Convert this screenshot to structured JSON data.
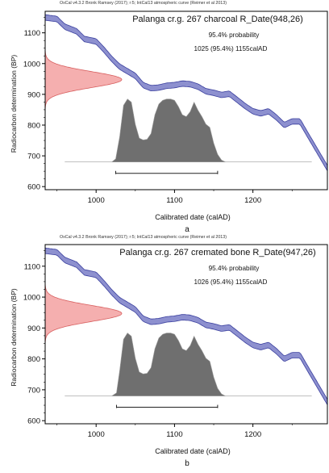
{
  "chart_data": [
    {
      "type": "area",
      "panel_label": "a",
      "credit": "OxCal v4.3.2 Bronk Ramsey (2017); r:5; IntCal13 atmospheric curve (Reimer et al 2013)",
      "title": "Palanga cr.g. 267 charcoal R_Date(948,26)",
      "probability_label": "95.4% probability",
      "range_label": "1025 (95.4%) 1155calAD",
      "xlabel": "Calibrated date (calAD)",
      "ylabel": "Radiocarbon determination (BP)",
      "xlim": [
        935,
        1295
      ],
      "ylim": [
        590,
        1170
      ],
      "xticks": [
        1000,
        1100,
        1200
      ],
      "yticks": [
        600,
        700,
        800,
        900,
        1000,
        1100
      ],
      "colors": {
        "curve_fill": "#8d90cf",
        "curve_stroke": "#3a3f9e",
        "normal": "#f4a6a6",
        "normal_stroke": "#d86060",
        "posterior": "#6f6f6f"
      },
      "calibration_curve": {
        "x": [
          935,
          950,
          960,
          975,
          985,
          1000,
          1010,
          1020,
          1030,
          1040,
          1050,
          1060,
          1070,
          1080,
          1090,
          1100,
          1110,
          1120,
          1130,
          1140,
          1150,
          1160,
          1170,
          1180,
          1190,
          1200,
          1210,
          1220,
          1230,
          1240,
          1250,
          1260,
          1270,
          1280,
          1295
        ],
        "y": [
          1150,
          1145,
          1120,
          1105,
          1080,
          1072,
          1045,
          1015,
          990,
          975,
          960,
          930,
          920,
          922,
          928,
          930,
          935,
          933,
          925,
          910,
          905,
          898,
          902,
          882,
          862,
          845,
          838,
          845,
          825,
          800,
          812,
          812,
          768,
          725,
          660
        ],
        "sigma": 9
      },
      "radiocarbon_date": {
        "mean": 948,
        "sigma": 26
      },
      "posterior": {
        "x": [
          960,
          1020,
          1025,
          1030,
          1035,
          1040,
          1045,
          1050,
          1055,
          1060,
          1065,
          1070,
          1075,
          1080,
          1085,
          1090,
          1095,
          1100,
          1105,
          1110,
          1115,
          1120,
          1125,
          1130,
          1135,
          1140,
          1145,
          1150,
          1155,
          1160,
          1165,
          1275
        ],
        "y": [
          0,
          0,
          0.05,
          0.4,
          0.9,
          1.0,
          0.95,
          0.6,
          0.38,
          0.35,
          0.36,
          0.45,
          0.75,
          0.92,
          0.98,
          1.0,
          1.0,
          0.98,
          0.88,
          0.75,
          0.72,
          0.8,
          0.95,
          0.82,
          0.72,
          0.6,
          0.55,
          0.3,
          0.12,
          0.03,
          0,
          0
        ]
      },
      "range_95": [
        1025,
        1155
      ]
    },
    {
      "type": "area",
      "panel_label": "b",
      "credit": "OxCal v4.3.2 Bronk Ramsey (2017); r:5; IntCal13 atmospheric curve (Reimer et al 2013)",
      "title": "Palanga cr.g. 267 cremated bone R_Date(947,26)",
      "probability_label": "95.4% probability",
      "range_label": "1026 (95.4%) 1155calAD",
      "xlabel": "Calibrated date (calAD)",
      "ylabel": "Radiocarbon determination (BP)",
      "xlim": [
        935,
        1295
      ],
      "ylim": [
        590,
        1170
      ],
      "xticks": [
        1000,
        1100,
        1200
      ],
      "yticks": [
        600,
        700,
        800,
        900,
        1000,
        1100
      ],
      "colors": {
        "curve_fill": "#8d90cf",
        "curve_stroke": "#3a3f9e",
        "normal": "#f4a6a6",
        "normal_stroke": "#d86060",
        "posterior": "#6f6f6f"
      },
      "calibration_curve": {
        "x": [
          935,
          950,
          960,
          975,
          985,
          1000,
          1010,
          1020,
          1030,
          1040,
          1050,
          1060,
          1070,
          1080,
          1090,
          1100,
          1110,
          1120,
          1130,
          1140,
          1150,
          1160,
          1170,
          1180,
          1190,
          1200,
          1210,
          1220,
          1230,
          1240,
          1250,
          1260,
          1270,
          1280,
          1295
        ],
        "y": [
          1150,
          1145,
          1120,
          1105,
          1080,
          1072,
          1045,
          1015,
          990,
          975,
          960,
          930,
          920,
          922,
          928,
          930,
          935,
          933,
          925,
          910,
          905,
          898,
          902,
          882,
          862,
          845,
          838,
          845,
          825,
          800,
          812,
          812,
          768,
          725,
          660
        ],
        "sigma": 9
      },
      "radiocarbon_date": {
        "mean": 947,
        "sigma": 26
      },
      "posterior": {
        "x": [
          960,
          1020,
          1026,
          1030,
          1035,
          1040,
          1045,
          1050,
          1055,
          1060,
          1065,
          1070,
          1075,
          1080,
          1085,
          1090,
          1095,
          1100,
          1105,
          1110,
          1115,
          1120,
          1125,
          1130,
          1135,
          1140,
          1145,
          1150,
          1155,
          1160,
          1165,
          1275
        ],
        "y": [
          0,
          0,
          0.05,
          0.4,
          0.9,
          1.0,
          0.95,
          0.6,
          0.38,
          0.35,
          0.36,
          0.45,
          0.75,
          0.92,
          0.98,
          1.0,
          1.0,
          0.98,
          0.88,
          0.75,
          0.72,
          0.8,
          0.95,
          0.82,
          0.72,
          0.6,
          0.55,
          0.3,
          0.12,
          0.03,
          0,
          0
        ]
      },
      "range_95": [
        1026,
        1155
      ]
    }
  ]
}
